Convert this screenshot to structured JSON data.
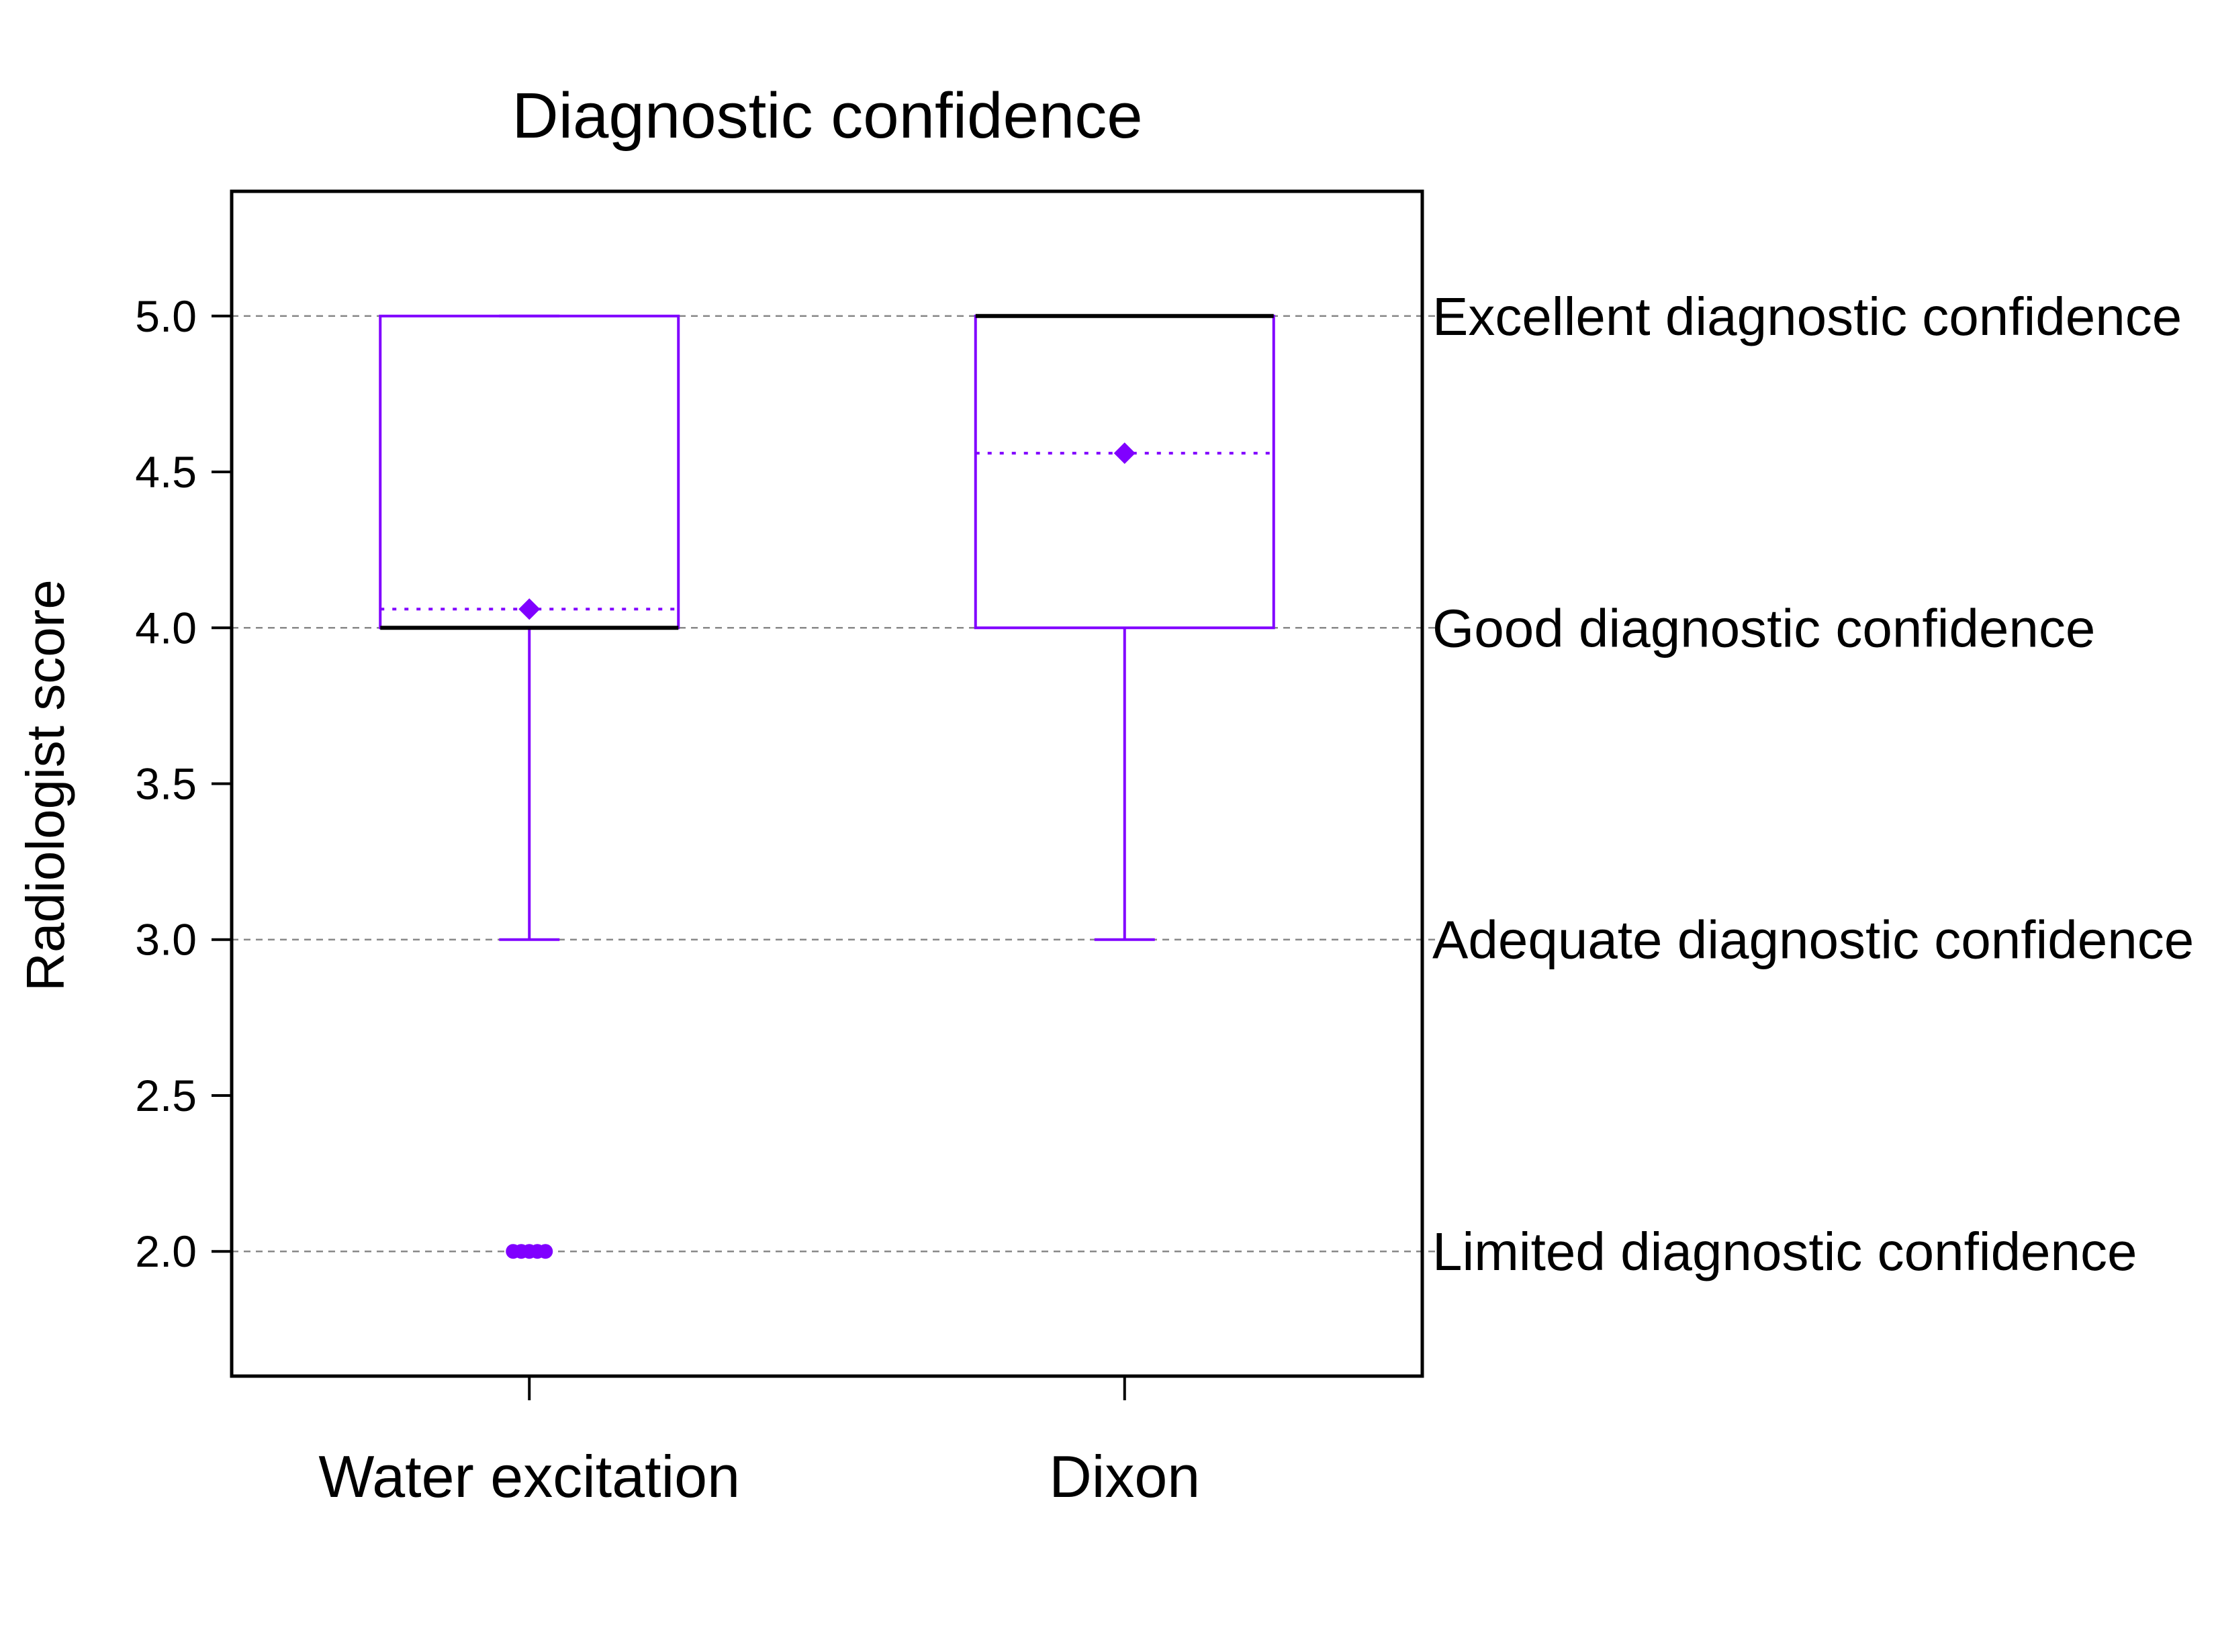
{
  "chart_data": {
    "type": "box",
    "title": "Diagnostic confidence",
    "ylabel": "Radiologist score",
    "xlabel": "",
    "ylim": [
      1.6,
      5.4
    ],
    "yticks": [
      "2.0",
      "2.5",
      "3.0",
      "3.5",
      "4.0",
      "4.5",
      "5.0"
    ],
    "grid": "horizontal dashed at score levels",
    "score_labels": [
      {
        "value": 5,
        "label": "Excellent diagnostic confidence"
      },
      {
        "value": 4,
        "label": "Good diagnostic confidence"
      },
      {
        "value": 3,
        "label": "Adequate diagnostic confidence"
      },
      {
        "value": 2,
        "label": "Limited diagnostic confidence"
      }
    ],
    "categories": [
      "Water excitation",
      "Dixon"
    ],
    "series": [
      {
        "name": "Water excitation",
        "whisker_low": 3.0,
        "q1": 4.0,
        "median": 4.0,
        "q3": 5.0,
        "whisker_high": 5.0,
        "mean": 4.06,
        "outliers": [
          2.0,
          2.0,
          2.0,
          2.0,
          2.0
        ]
      },
      {
        "name": "Dixon",
        "whisker_low": 3.0,
        "q1": 4.0,
        "median": 5.0,
        "q3": 5.0,
        "whisker_high": 5.0,
        "mean": 4.56,
        "outliers": []
      }
    ],
    "colors": {
      "box": "#8000ff",
      "median": "#000000",
      "grid": "#888888",
      "axis": "#000000"
    }
  }
}
